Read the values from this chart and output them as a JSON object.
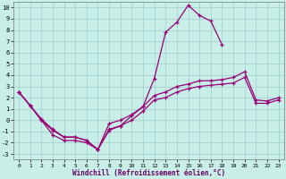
{
  "xlabel": "Windchill (Refroidissement éolien,°C)",
  "bg_color": "#c8eee8",
  "grid_color": "#9ecece",
  "line_color": "#990077",
  "xlim": [
    0,
    23
  ],
  "ylim": [
    -3,
    10
  ],
  "xticks": [
    0,
    1,
    2,
    3,
    4,
    5,
    6,
    7,
    8,
    9,
    10,
    11,
    12,
    13,
    14,
    15,
    16,
    17,
    18,
    19,
    20,
    21,
    22,
    23
  ],
  "yticks": [
    -3,
    -2,
    -1,
    0,
    1,
    2,
    3,
    4,
    5,
    6,
    7,
    8,
    9,
    10
  ],
  "line1_x": [
    0,
    1,
    2,
    3,
    4,
    5,
    6,
    7,
    8,
    9,
    10,
    11,
    12,
    13,
    14,
    15,
    16,
    17,
    18
  ],
  "line1_y": [
    2.5,
    1.3,
    0.1,
    -0.8,
    -1.5,
    -1.5,
    -1.8,
    -2.6,
    -0.8,
    -0.5,
    0.4,
    1.2,
    3.7,
    7.8,
    8.7,
    10.2,
    9.3,
    8.8,
    6.7
  ],
  "line2_x": [
    0,
    1,
    2,
    3,
    4,
    5,
    6,
    7,
    8,
    9,
    10,
    11,
    12,
    13,
    14,
    15,
    16,
    17,
    18,
    19,
    20,
    21,
    22,
    23
  ],
  "line2_y": [
    2.5,
    1.3,
    0.0,
    -0.9,
    -1.5,
    -1.5,
    -1.8,
    -2.6,
    -0.3,
    0.0,
    0.5,
    1.2,
    2.2,
    2.5,
    3.0,
    3.2,
    3.5,
    3.5,
    3.6,
    3.8,
    4.3,
    1.8,
    1.7,
    2.0
  ],
  "line3_x": [
    0,
    1,
    2,
    3,
    4,
    5,
    6,
    7,
    8,
    9,
    10,
    11,
    12,
    13,
    14,
    15,
    16,
    17,
    18,
    19,
    20,
    21,
    22,
    23
  ],
  "line3_y": [
    2.5,
    1.3,
    0.0,
    -1.3,
    -1.8,
    -1.8,
    -2.0,
    -2.6,
    -0.9,
    -0.5,
    0.0,
    0.8,
    1.8,
    2.0,
    2.5,
    2.8,
    3.0,
    3.1,
    3.2,
    3.3,
    3.8,
    1.5,
    1.5,
    1.8
  ]
}
